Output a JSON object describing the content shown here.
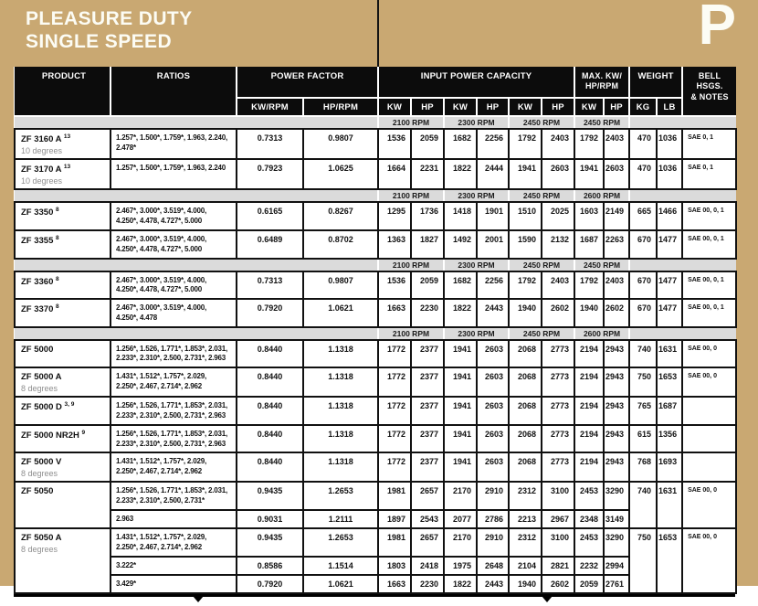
{
  "page": {
    "title_line1": "PLEASURE DUTY",
    "title_line2": "SINGLE SPEED",
    "corner_letter": "P"
  },
  "colors": {
    "tan": "#C9A872",
    "header_black": "#0C0C0C",
    "band_gray": "#DBDBDB",
    "subtext_gray": "#8F8F8F",
    "border_black": "#111111"
  },
  "table": {
    "headers": {
      "product": "PRODUCT",
      "ratios": "RATIOS",
      "power_factor": "POWER FACTOR",
      "kw_rpm": "KW/RPM",
      "hp_rpm": "HP/RPM",
      "input_power": "INPUT POWER CAPACITY",
      "max_kw_hp": "MAX. KW/\nHP/RPM",
      "weight": "WEIGHT",
      "bell": "BELL HSGS.\n& NOTES",
      "kw": "KW",
      "hp": "HP",
      "kg": "KG",
      "lb": "LB"
    },
    "groups": [
      {
        "rpm_bands": [
          "2100 RPM",
          "2300 RPM",
          "2450 RPM",
          "2450 RPM"
        ],
        "rows": [
          {
            "product": "ZF 3160 A",
            "sup": "13",
            "sub": "10 degrees",
            "kg": "470",
            "lb": "1036",
            "notes": "SAE 0, 1",
            "ratio_rows": [
              {
                "ratios": "1.257*, 1.500*, 1.759*, 1.963, 2.240,\n2.478*",
                "kw_rpm": "0.7313",
                "hp_rpm": "0.9807",
                "capacity": [
                  "1536",
                  "2059",
                  "1682",
                  "2256",
                  "1792",
                  "2403"
                ],
                "max": [
                  "1792",
                  "2403"
                ]
              }
            ]
          },
          {
            "product": "ZF 3170 A",
            "sup": "13",
            "sub": "10 degrees",
            "kg": "470",
            "lb": "1036",
            "notes": "SAE 0, 1",
            "ratio_rows": [
              {
                "ratios": "1.257*, 1.500*, 1.759*, 1.963, 2.240",
                "kw_rpm": "0.7923",
                "hp_rpm": "1.0625",
                "capacity": [
                  "1664",
                  "2231",
                  "1822",
                  "2444",
                  "1941",
                  "2603"
                ],
                "max": [
                  "1941",
                  "2603"
                ]
              }
            ]
          }
        ]
      },
      {
        "rpm_bands": [
          "2100 RPM",
          "2300 RPM",
          "2450 RPM",
          "2600 RPM"
        ],
        "rows": [
          {
            "product": "ZF 3350",
            "sup": "8",
            "sub": "",
            "kg": "665",
            "lb": "1466",
            "notes": "SAE 00, 0, 1",
            "ratio_rows": [
              {
                "ratios": "2.467*, 3.000*, 3.519*, 4.000,\n4.250*, 4.478, 4.727*, 5.000",
                "kw_rpm": "0.6165",
                "hp_rpm": "0.8267",
                "capacity": [
                  "1295",
                  "1736",
                  "1418",
                  "1901",
                  "1510",
                  "2025"
                ],
                "max": [
                  "1603",
                  "2149"
                ]
              }
            ]
          },
          {
            "product": "ZF 3355",
            "sup": "8",
            "sub": "",
            "kg": "670",
            "lb": "1477",
            "notes": "SAE 00, 0, 1",
            "ratio_rows": [
              {
                "ratios": "2.467*, 3.000*, 3.519*, 4.000,\n4.250*, 4.478, 4.727*, 5.000",
                "kw_rpm": "0.6489",
                "hp_rpm": "0.8702",
                "capacity": [
                  "1363",
                  "1827",
                  "1492",
                  "2001",
                  "1590",
                  "2132"
                ],
                "max": [
                  "1687",
                  "2263"
                ]
              }
            ]
          }
        ]
      },
      {
        "rpm_bands": [
          "2100 RPM",
          "2300 RPM",
          "2450 RPM",
          "2450 RPM"
        ],
        "rows": [
          {
            "product": "ZF 3360",
            "sup": "8",
            "sub": "",
            "kg": "670",
            "lb": "1477",
            "notes": "SAE 00, 0, 1",
            "ratio_rows": [
              {
                "ratios": "2.467*, 3.000*, 3.519*, 4.000,\n4.250*, 4.478, 4.727*, 5.000",
                "kw_rpm": "0.7313",
                "hp_rpm": "0.9807",
                "capacity": [
                  "1536",
                  "2059",
                  "1682",
                  "2256",
                  "1792",
                  "2403"
                ],
                "max": [
                  "1792",
                  "2403"
                ]
              }
            ]
          },
          {
            "product": "ZF 3370",
            "sup": "8",
            "sub": "",
            "kg": "670",
            "lb": "1477",
            "notes": "SAE 00, 0, 1",
            "ratio_rows": [
              {
                "ratios": "2.467*, 3.000*, 3.519*, 4.000,\n4.250*, 4.478",
                "kw_rpm": "0.7920",
                "hp_rpm": "1.0621",
                "capacity": [
                  "1663",
                  "2230",
                  "1822",
                  "2443",
                  "1940",
                  "2602"
                ],
                "max": [
                  "1940",
                  "2602"
                ]
              }
            ]
          }
        ]
      },
      {
        "rpm_bands": [
          "2100 RPM",
          "2300 RPM",
          "2450 RPM",
          "2600 RPM"
        ],
        "rows": [
          {
            "product": "ZF 5000",
            "sup": "",
            "sub": "",
            "kg": "740",
            "lb": "1631",
            "notes": "SAE 00, 0",
            "ratio_rows": [
              {
                "ratios": "1.256*, 1.526, 1.771*, 1.853*, 2.031,\n2.233*, 2.310*, 2.500, 2.731*, 2.963",
                "kw_rpm": "0.8440",
                "hp_rpm": "1.1318",
                "capacity": [
                  "1772",
                  "2377",
                  "1941",
                  "2603",
                  "2068",
                  "2773"
                ],
                "max": [
                  "2194",
                  "2943"
                ]
              }
            ]
          },
          {
            "product": "ZF 5000 A",
            "sup": "",
            "sub": "8 degrees",
            "kg": "750",
            "lb": "1653",
            "notes": "SAE 00, 0",
            "ratio_rows": [
              {
                "ratios": "1.431*, 1.512*, 1.757*, 2.029,\n2.250*, 2.467, 2.714*, 2.962",
                "kw_rpm": "0.8440",
                "hp_rpm": "1.1318",
                "capacity": [
                  "1772",
                  "2377",
                  "1941",
                  "2603",
                  "2068",
                  "2773"
                ],
                "max": [
                  "2194",
                  "2943"
                ]
              }
            ]
          },
          {
            "product": "ZF 5000 D",
            "sup": "3, 9",
            "sub": "",
            "kg": "765",
            "lb": "1687",
            "notes": "",
            "ratio_rows": [
              {
                "ratios": "1.256*, 1.526, 1.771*, 1.853*, 2.031,\n2.233*, 2.310*, 2.500, 2.731*, 2.963",
                "kw_rpm": "0.8440",
                "hp_rpm": "1.1318",
                "capacity": [
                  "1772",
                  "2377",
                  "1941",
                  "2603",
                  "2068",
                  "2773"
                ],
                "max": [
                  "2194",
                  "2943"
                ]
              }
            ]
          },
          {
            "product": "ZF 5000 NR2H",
            "sup": "9",
            "sub": "",
            "kg": "615",
            "lb": "1356",
            "notes": "",
            "ratio_rows": [
              {
                "ratios": "1.256*, 1.526, 1.771*, 1.853*, 2.031,\n2.233*, 2.310*, 2.500, 2.731*, 2.963",
                "kw_rpm": "0.8440",
                "hp_rpm": "1.1318",
                "capacity": [
                  "1772",
                  "2377",
                  "1941",
                  "2603",
                  "2068",
                  "2773"
                ],
                "max": [
                  "2194",
                  "2943"
                ]
              }
            ]
          },
          {
            "product": "ZF 5000 V",
            "sup": "",
            "sub": "8 degrees",
            "kg": "768",
            "lb": "1693",
            "notes": "",
            "ratio_rows": [
              {
                "ratios": "1.431*, 1.512*, 1.757*, 2.029,\n2.250*, 2.467, 2.714*, 2.962",
                "kw_rpm": "0.8440",
                "hp_rpm": "1.1318",
                "capacity": [
                  "1772",
                  "2377",
                  "1941",
                  "2603",
                  "2068",
                  "2773"
                ],
                "max": [
                  "2194",
                  "2943"
                ]
              }
            ]
          },
          {
            "product": "ZF 5050",
            "sup": "",
            "sub": "",
            "kg": "740",
            "lb": "1631",
            "notes": "SAE 00, 0",
            "ratio_rows": [
              {
                "ratios": "1.256*, 1.526, 1.771*, 1.853*, 2.031,\n2.233*, 2.310*, 2.500, 2.731*",
                "kw_rpm": "0.9435",
                "hp_rpm": "1.2653",
                "capacity": [
                  "1981",
                  "2657",
                  "2170",
                  "2910",
                  "2312",
                  "3100"
                ],
                "max": [
                  "2453",
                  "3290"
                ]
              },
              {
                "ratios": "2.963",
                "kw_rpm": "0.9031",
                "hp_rpm": "1.2111",
                "capacity": [
                  "1897",
                  "2543",
                  "2077",
                  "2786",
                  "2213",
                  "2967"
                ],
                "max": [
                  "2348",
                  "3149"
                ]
              }
            ]
          },
          {
            "product": "ZF 5050 A",
            "sup": "",
            "sub": "8 degrees",
            "kg": "750",
            "lb": "1653",
            "notes": "SAE 00, 0",
            "ratio_rows": [
              {
                "ratios": "1.431*, 1.512*, 1.757*, 2.029,\n2.250*, 2.467, 2.714*, 2.962",
                "kw_rpm": "0.9435",
                "hp_rpm": "1.2653",
                "capacity": [
                  "1981",
                  "2657",
                  "2170",
                  "2910",
                  "2312",
                  "3100"
                ],
                "max": [
                  "2453",
                  "3290"
                ]
              },
              {
                "ratios": "3.222*",
                "kw_rpm": "0.8586",
                "hp_rpm": "1.1514",
                "capacity": [
                  "1803",
                  "2418",
                  "1975",
                  "2648",
                  "2104",
                  "2821"
                ],
                "max": [
                  "2232",
                  "2994"
                ]
              },
              {
                "ratios": "3.429*",
                "kw_rpm": "0.7920",
                "hp_rpm": "1.0621",
                "capacity": [
                  "1663",
                  "2230",
                  "1822",
                  "2443",
                  "1940",
                  "2602"
                ],
                "max": [
                  "2059",
                  "2761"
                ]
              }
            ]
          }
        ]
      }
    ]
  }
}
